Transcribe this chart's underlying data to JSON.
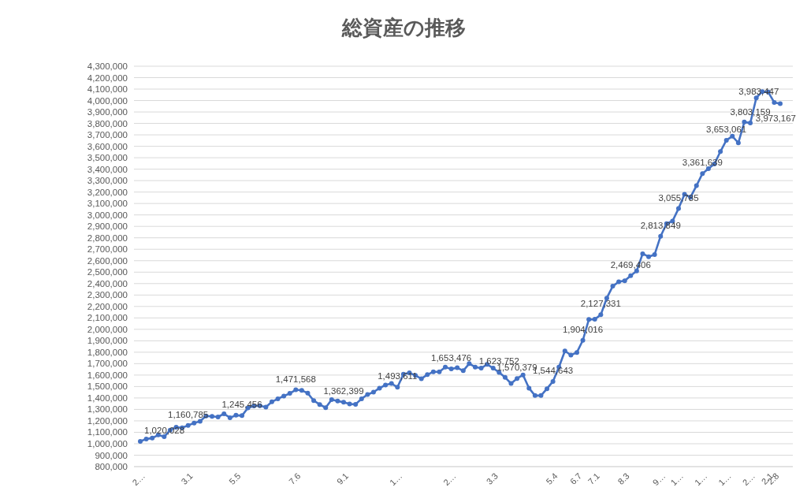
{
  "chart_data": {
    "type": "line",
    "title": "総資産の推移",
    "categories": [
      "2…",
      null,
      null,
      null,
      null,
      null,
      null,
      null,
      "3.1",
      null,
      null,
      null,
      null,
      null,
      null,
      null,
      "5.5",
      null,
      null,
      null,
      null,
      null,
      null,
      null,
      null,
      null,
      "7.6",
      null,
      null,
      null,
      null,
      null,
      null,
      null,
      "9.1",
      null,
      null,
      null,
      null,
      null,
      null,
      null,
      null,
      "1…",
      null,
      null,
      null,
      null,
      null,
      null,
      null,
      null,
      "2…",
      null,
      null,
      null,
      null,
      null,
      null,
      "3.3",
      null,
      null,
      null,
      null,
      null,
      null,
      null,
      null,
      null,
      "5.4",
      null,
      null,
      null,
      "6.7",
      null,
      null,
      "7.1",
      null,
      null,
      null,
      null,
      "8.3",
      null,
      null,
      null,
      null,
      null,
      "9…",
      null,
      null,
      "1…",
      null,
      null,
      null,
      "1…",
      null,
      null,
      null,
      "1…",
      null,
      null,
      null,
      "2…",
      null,
      null,
      "2.1",
      "2.8",
      null
    ],
    "series": [
      {
        "color": "#4472c4",
        "values": [
          1020028,
          1042000,
          1049000,
          1077000,
          1061000,
          1119000,
          1144000,
          1139000,
          1160785,
          1181000,
          1197000,
          1243000,
          1239000,
          1234000,
          1262000,
          1227000,
          1249000,
          1245456,
          1313000,
          1331000,
          1333000,
          1320000,
          1366000,
          1393000,
          1417000,
          1440000,
          1471568,
          1467000,
          1442000,
          1377000,
          1343000,
          1315000,
          1386000,
          1373000,
          1362399,
          1347000,
          1345000,
          1393000,
          1430000,
          1451000,
          1486000,
          1513000,
          1527000,
          1493611,
          1608000,
          1620000,
          1597000,
          1569000,
          1604000,
          1629000,
          1629000,
          1670000,
          1653476,
          1664000,
          1638000,
          1700000,
          1670000,
          1661000,
          1694000,
          1661000,
          1623752,
          1580000,
          1527000,
          1570379,
          1601000,
          1486000,
          1421000,
          1421000,
          1481000,
          1544643,
          1670000,
          1811000,
          1775000,
          1798000,
          1904016,
          2086000,
          2088000,
          2127331,
          2273000,
          2377000,
          2416000,
          2425000,
          2469406,
          2510000,
          2661000,
          2635000,
          2654000,
          2813849,
          2924000,
          2947000,
          3055785,
          3180000,
          3155000,
          3256000,
          3361639,
          3404000,
          3446000,
          3554000,
          3653061,
          3688000,
          3630000,
          3812000,
          3803159,
          4023000,
          4078000,
          4074000,
          3983447,
          3973167
        ],
        "value_labels": [
          "1,020,028",
          null,
          null,
          null,
          null,
          null,
          null,
          null,
          "1,160,785",
          null,
          null,
          null,
          null,
          null,
          null,
          null,
          null,
          "1,245,456",
          null,
          null,
          null,
          null,
          null,
          null,
          null,
          null,
          "1,471,568",
          null,
          null,
          null,
          null,
          null,
          null,
          null,
          "1,362,399",
          null,
          null,
          null,
          null,
          null,
          null,
          null,
          null,
          "1,493,611",
          null,
          null,
          null,
          null,
          null,
          null,
          null,
          null,
          "1,653,476",
          null,
          null,
          null,
          null,
          null,
          null,
          null,
          "1,623,752",
          null,
          null,
          "1,570,379",
          null,
          null,
          null,
          null,
          null,
          "1,544,643",
          null,
          null,
          null,
          null,
          "1,904,016",
          null,
          null,
          "2,127,331",
          null,
          null,
          null,
          null,
          "2,469,406",
          null,
          null,
          null,
          null,
          "2,813,849",
          null,
          null,
          "3,055,785",
          null,
          null,
          null,
          "3,361,639",
          null,
          null,
          null,
          "3,653,061",
          null,
          null,
          null,
          "3,803,159",
          null,
          null,
          null,
          "3,983,447",
          "3,973,167"
        ]
      }
    ],
    "ylim": [
      800000,
      4300000
    ],
    "yticks": [
      {
        "value": 800000,
        "label": "800,000"
      },
      {
        "value": 900000,
        "label": "900,000"
      },
      {
        "value": 1000000,
        "label": "1,000,000"
      },
      {
        "value": 1100000,
        "label": "1,100,000"
      },
      {
        "value": 1200000,
        "label": "1,200,000"
      },
      {
        "value": 1300000,
        "label": "1,300,000"
      },
      {
        "value": 1400000,
        "label": "1,400,000"
      },
      {
        "value": 1500000,
        "label": "1,500,000"
      },
      {
        "value": 1600000,
        "label": "1,600,000"
      },
      {
        "value": 1700000,
        "label": "1,700,000"
      },
      {
        "value": 1800000,
        "label": "1,800,000"
      },
      {
        "value": 1900000,
        "label": "1,900,000"
      },
      {
        "value": 2000000,
        "label": "2,000,000"
      },
      {
        "value": 2100000,
        "label": "2,100,000"
      },
      {
        "value": 2200000,
        "label": "2,200,000"
      },
      {
        "value": 2300000,
        "label": "2,300,000"
      },
      {
        "value": 2400000,
        "label": "2,400,000"
      },
      {
        "value": 2500000,
        "label": "2,500,000"
      },
      {
        "value": 2600000,
        "label": "2,600,000"
      },
      {
        "value": 2700000,
        "label": "2,700,000"
      },
      {
        "value": 2800000,
        "label": "2,800,000"
      },
      {
        "value": 2900000,
        "label": "2,900,000"
      },
      {
        "value": 3000000,
        "label": "3,000,000"
      },
      {
        "value": 3100000,
        "label": "3,100,000"
      },
      {
        "value": 3200000,
        "label": "3,200,000"
      },
      {
        "value": 3300000,
        "label": "3,300,000"
      },
      {
        "value": 3400000,
        "label": "3,400,000"
      },
      {
        "value": 3500000,
        "label": "3,500,000"
      },
      {
        "value": 3600000,
        "label": "3,600,000"
      },
      {
        "value": 3700000,
        "label": "3,700,000"
      },
      {
        "value": 3800000,
        "label": "3,800,000"
      },
      {
        "value": 3900000,
        "label": "3,900,000"
      },
      {
        "value": 4000000,
        "label": "4,000,000"
      },
      {
        "value": 4100000,
        "label": "4,100,000"
      },
      {
        "value": 4200000,
        "label": "4,200,000"
      },
      {
        "value": 4300000,
        "label": "4,300,000"
      }
    ],
    "grid": "y",
    "marker": "circle"
  }
}
